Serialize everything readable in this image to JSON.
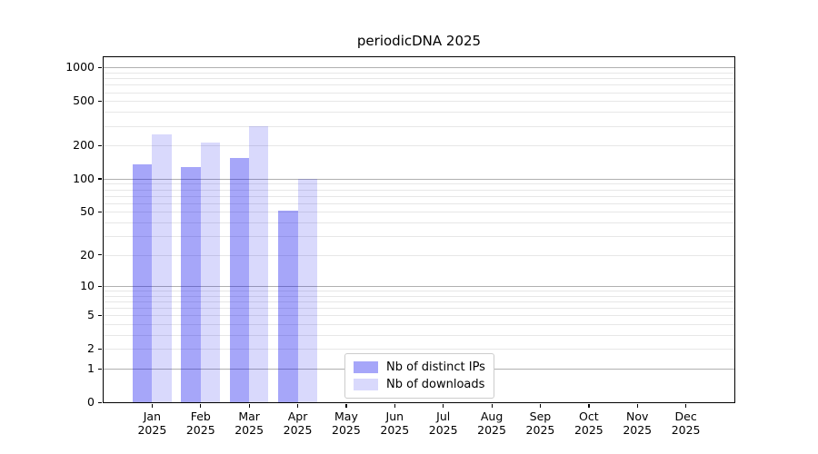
{
  "chart_data": {
    "type": "bar",
    "title": "periodicDNA 2025",
    "categories": [
      "Jan 2025",
      "Feb 2025",
      "Mar 2025",
      "Apr 2025",
      "May 2025",
      "Jun 2025",
      "Jul 2025",
      "Aug 2025",
      "Sep 2025",
      "Oct 2025",
      "Nov 2025",
      "Dec 2025"
    ],
    "series": [
      {
        "name": "Nb of distinct IPs",
        "color": "rgba(0,0,238,0.35)",
        "solid_hex": "#a7a7f6",
        "values": [
          135,
          128,
          155,
          51,
          0,
          0,
          0,
          0,
          0,
          0,
          0,
          0
        ]
      },
      {
        "name": "Nb of downloads",
        "color": "rgba(0,0,238,0.15)",
        "solid_hex": "#d9d9fb",
        "values": [
          250,
          212,
          300,
          100,
          0,
          0,
          0,
          0,
          0,
          0,
          0,
          0
        ]
      }
    ],
    "y_axis": {
      "scale": "log1p",
      "ticks": [
        0,
        1,
        2,
        5,
        10,
        20,
        50,
        100,
        200,
        500,
        1000
      ],
      "max": 1240,
      "major_grid": [
        1,
        10,
        100,
        1000
      ]
    },
    "grid": "on",
    "legend": {
      "position": "lower-center",
      "entries": [
        "Nb of distinct IPs",
        "Nb of downloads"
      ]
    },
    "colors": {
      "major_grid": "#b0b0b0",
      "minor_grid": "#e7e7e7",
      "spine": "#000000",
      "background": "#ffffff"
    }
  }
}
